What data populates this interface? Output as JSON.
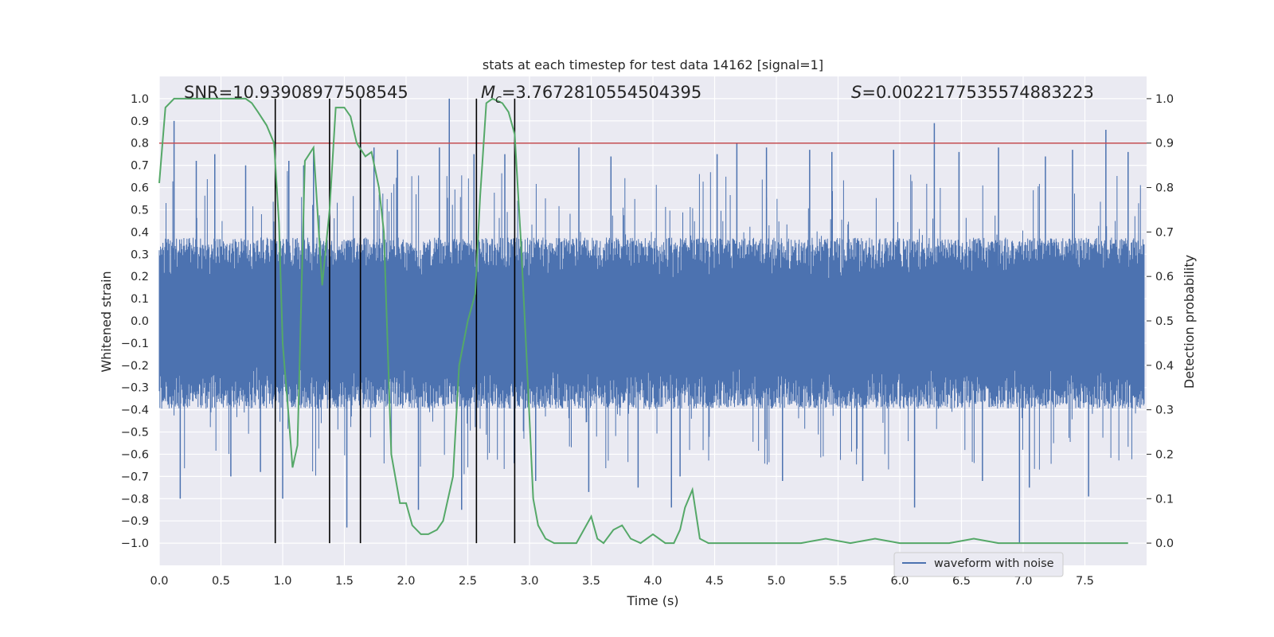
{
  "chart_data": {
    "type": "line",
    "title": "stats at each timestep for test data 14162 [signal=1]",
    "xlabel": "Time (s)",
    "ylabel_left": "Whitened strain",
    "ylabel_right": "Detection probability",
    "xlim": [
      0.0,
      8.0
    ],
    "ylim_left": [
      -1.1,
      1.1
    ],
    "ylim_right": [
      -0.05,
      1.05
    ],
    "xticks": [
      0.0,
      0.5,
      1.0,
      1.5,
      2.0,
      2.5,
      3.0,
      3.5,
      4.0,
      4.5,
      5.0,
      5.5,
      6.0,
      6.5,
      7.0,
      7.5
    ],
    "xtick_labels": [
      "0.0",
      "0.5",
      "1.0",
      "1.5",
      "2.0",
      "2.5",
      "3.0",
      "3.5",
      "4.0",
      "4.5",
      "5.0",
      "5.5",
      "6.0",
      "6.5",
      "7.0",
      "7.5"
    ],
    "yticks_left": [
      1.0,
      0.9,
      0.8,
      0.7,
      0.6,
      0.5,
      0.4,
      0.3,
      0.2,
      0.1,
      0.0,
      -0.1,
      -0.2,
      -0.3,
      -0.4,
      -0.5,
      -0.6,
      -0.7,
      -0.8,
      -0.9,
      -1.0
    ],
    "ytick_labels_left": [
      "1.0",
      "0.9",
      "0.8",
      "0.7",
      "0.6",
      "0.5",
      "0.4",
      "0.3",
      "0.2",
      "0.1",
      "0.0",
      "−0.1",
      "−0.2",
      "−0.3",
      "−0.4",
      "−0.5",
      "−0.6",
      "−0.7",
      "−0.8",
      "−0.9",
      "−1.0"
    ],
    "yticks_right": [
      1.0,
      0.9,
      0.8,
      0.7,
      0.6,
      0.5,
      0.4,
      0.3,
      0.2,
      0.1,
      0.0
    ],
    "ytick_labels_right": [
      "1.0",
      "0.9",
      "0.8",
      "0.7",
      "0.6",
      "0.5",
      "0.4",
      "0.3",
      "0.2",
      "0.1",
      "0.0"
    ],
    "annotations": {
      "snr": "SNR=10.939089775085 45",
      "mc_symbol": "M",
      "mc_subscript": "c",
      "mc_value": "=3.7672810554504395",
      "s_symbol": "S",
      "s_value": "=0.0022177535574883223"
    },
    "threshold": {
      "value": 0.9,
      "axis": "right",
      "color": "#c44e52"
    },
    "vertical_lines_x": [
      0.94,
      1.38,
      1.63,
      2.57,
      2.88
    ],
    "waveform": {
      "name": "waveform with noise",
      "color": "#4c72b0",
      "envelope": {
        "pos": [
          0.18,
          0.38
        ],
        "neg": [
          -0.2,
          -0.4
        ]
      },
      "spikes": [
        {
          "x": 0.12,
          "y": 0.9
        },
        {
          "x": 0.17,
          "y": -0.8
        },
        {
          "x": 0.3,
          "y": 0.72
        },
        {
          "x": 0.45,
          "y": 0.75
        },
        {
          "x": 0.58,
          "y": -0.7
        },
        {
          "x": 0.7,
          "y": 0.7
        },
        {
          "x": 0.82,
          "y": -0.68
        },
        {
          "x": 1.0,
          "y": -0.8
        },
        {
          "x": 1.05,
          "y": 0.72
        },
        {
          "x": 1.17,
          "y": 0.7
        },
        {
          "x": 1.25,
          "y": 0.78
        },
        {
          "x": 1.52,
          "y": -0.93
        },
        {
          "x": 1.63,
          "y": 0.85
        },
        {
          "x": 1.74,
          "y": 0.78
        },
        {
          "x": 1.93,
          "y": 0.77
        },
        {
          "x": 2.1,
          "y": -0.85
        },
        {
          "x": 2.27,
          "y": 0.78
        },
        {
          "x": 2.35,
          "y": 1.0
        },
        {
          "x": 2.45,
          "y": -0.85
        },
        {
          "x": 2.55,
          "y": 0.75
        },
        {
          "x": 2.8,
          "y": 0.75
        },
        {
          "x": 3.05,
          "y": -0.72
        },
        {
          "x": 3.4,
          "y": 0.78
        },
        {
          "x": 3.48,
          "y": -0.77
        },
        {
          "x": 3.66,
          "y": 0.74
        },
        {
          "x": 3.88,
          "y": -0.75
        },
        {
          "x": 4.15,
          "y": -0.84
        },
        {
          "x": 4.22,
          "y": -0.7
        },
        {
          "x": 4.52,
          "y": 0.75
        },
        {
          "x": 4.68,
          "y": 0.8
        },
        {
          "x": 4.92,
          "y": 0.78
        },
        {
          "x": 5.05,
          "y": -0.72
        },
        {
          "x": 5.27,
          "y": 0.77
        },
        {
          "x": 5.45,
          "y": 0.76
        },
        {
          "x": 5.7,
          "y": -0.72
        },
        {
          "x": 5.95,
          "y": 0.77
        },
        {
          "x": 6.12,
          "y": -0.84
        },
        {
          "x": 6.28,
          "y": 0.89
        },
        {
          "x": 6.48,
          "y": 0.76
        },
        {
          "x": 6.67,
          "y": -0.72
        },
        {
          "x": 6.8,
          "y": 0.78
        },
        {
          "x": 6.97,
          "y": -1.0
        },
        {
          "x": 7.05,
          "y": -0.75
        },
        {
          "x": 7.18,
          "y": 0.74
        },
        {
          "x": 7.4,
          "y": 0.77
        },
        {
          "x": 7.53,
          "y": -0.79
        },
        {
          "x": 7.67,
          "y": 0.86
        },
        {
          "x": 7.85,
          "y": 0.76
        }
      ]
    },
    "probability": {
      "name": "detection probability",
      "color": "#55a868",
      "x": [
        0.0,
        0.05,
        0.12,
        0.2,
        0.3,
        0.4,
        0.5,
        0.6,
        0.7,
        0.75,
        0.8,
        0.87,
        0.93,
        0.97,
        1.0,
        1.05,
        1.08,
        1.12,
        1.18,
        1.25,
        1.32,
        1.38,
        1.43,
        1.5,
        1.55,
        1.6,
        1.67,
        1.72,
        1.78,
        1.82,
        1.88,
        1.95,
        2.0,
        2.05,
        2.12,
        2.18,
        2.25,
        2.3,
        2.38,
        2.43,
        2.5,
        2.56,
        2.6,
        2.65,
        2.7,
        2.78,
        2.83,
        2.88,
        2.93,
        2.98,
        3.03,
        3.07,
        3.13,
        3.2,
        3.3,
        3.38,
        3.44,
        3.5,
        3.55,
        3.6,
        3.68,
        3.75,
        3.82,
        3.9,
        4.0,
        4.1,
        4.17,
        4.22,
        4.26,
        4.32,
        4.38,
        4.45,
        4.6,
        4.8,
        5.0,
        5.2,
        5.4,
        5.6,
        5.8,
        6.0,
        6.2,
        6.4,
        6.6,
        6.8,
        7.0,
        7.2,
        7.4,
        7.6,
        7.85
      ],
      "y": [
        0.81,
        0.98,
        1.0,
        1.0,
        1.0,
        1.0,
        1.0,
        1.0,
        1.0,
        0.99,
        0.97,
        0.94,
        0.9,
        0.72,
        0.45,
        0.28,
        0.17,
        0.22,
        0.86,
        0.89,
        0.58,
        0.75,
        0.98,
        0.98,
        0.96,
        0.9,
        0.87,
        0.88,
        0.8,
        0.7,
        0.2,
        0.09,
        0.09,
        0.04,
        0.02,
        0.02,
        0.03,
        0.05,
        0.15,
        0.4,
        0.5,
        0.56,
        0.78,
        0.99,
        1.0,
        0.99,
        0.97,
        0.92,
        0.68,
        0.4,
        0.1,
        0.04,
        0.01,
        0.0,
        0.0,
        0.0,
        0.03,
        0.06,
        0.01,
        0.0,
        0.03,
        0.04,
        0.01,
        0.0,
        0.02,
        0.0,
        0.0,
        0.03,
        0.08,
        0.12,
        0.01,
        0.0,
        0.0,
        0.0,
        0.0,
        0.0,
        0.01,
        0.0,
        0.01,
        0.0,
        0.0,
        0.0,
        0.01,
        0.0,
        0.0,
        0.0,
        0.0,
        0.0,
        0.0
      ]
    },
    "legend": {
      "label": "waveform with noise",
      "location": "lower-right"
    },
    "grid": true,
    "background": "#eaeaf2"
  }
}
